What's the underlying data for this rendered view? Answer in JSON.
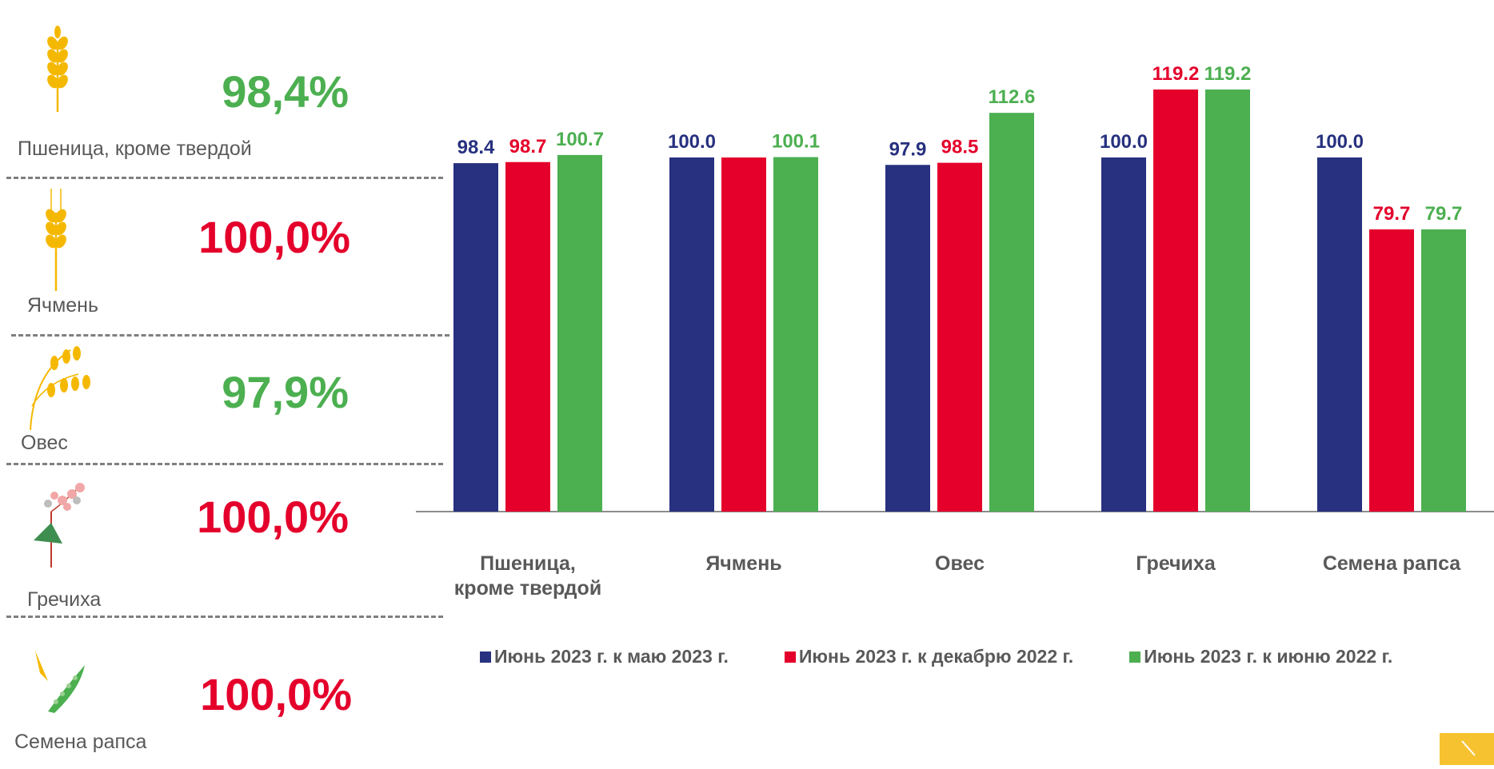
{
  "sidebar": {
    "items": [
      {
        "name": "Пшеница, кроме твердой",
        "percent": "98,4%",
        "color": "#4caf50",
        "icon": "wheat-icon"
      },
      {
        "name": "Ячмень",
        "percent": "100,0%",
        "color": "#e4002b",
        "icon": "barley-icon"
      },
      {
        "name": "Овес",
        "percent": "97,9%",
        "color": "#4caf50",
        "icon": "oats-icon"
      },
      {
        "name": "Гречиха",
        "percent": "100,0%",
        "color": "#e4002b",
        "icon": "buckwheat-icon"
      },
      {
        "name": "Семена рапса",
        "percent": "100,0%",
        "color": "#e4002b",
        "icon": "rapeseed-icon"
      }
    ]
  },
  "chart_data": {
    "type": "bar",
    "categories": [
      "Пшеница, кроме твердой",
      "Ячмень",
      "Овес",
      "Гречиха",
      "Семена рапса"
    ],
    "series": [
      {
        "name": "Июнь 2023 г. к маю 2023 г.",
        "color": "#27317f",
        "values": [
          98.4,
          100.0,
          97.9,
          100.0,
          100.0
        ],
        "labels": [
          "98.4",
          "100.0",
          "97.9",
          "100.0",
          "100.0"
        ]
      },
      {
        "name": "Июнь 2023 г. к декабрю 2022 г.",
        "color": "#e4002b",
        "values": [
          98.7,
          100.0,
          98.5,
          119.2,
          79.7
        ],
        "labels": [
          "98.7",
          "",
          "98.5",
          "119.2",
          "79.7"
        ]
      },
      {
        "name": "Июнь 2023 г. к июню 2022 г.",
        "color": "#4caf50",
        "values": [
          100.7,
          100.1,
          112.6,
          119.2,
          79.7
        ],
        "labels": [
          "100.7",
          "100.1",
          "112.6",
          "119.2",
          "79.7"
        ]
      }
    ],
    "legend_position": "bottom",
    "grid": false
  },
  "colors": {
    "navy": "#27317f",
    "red": "#e4002b",
    "green": "#4caf50",
    "gold": "#f6c230"
  },
  "nav": {
    "next_icon": "arrow-right-icon"
  }
}
